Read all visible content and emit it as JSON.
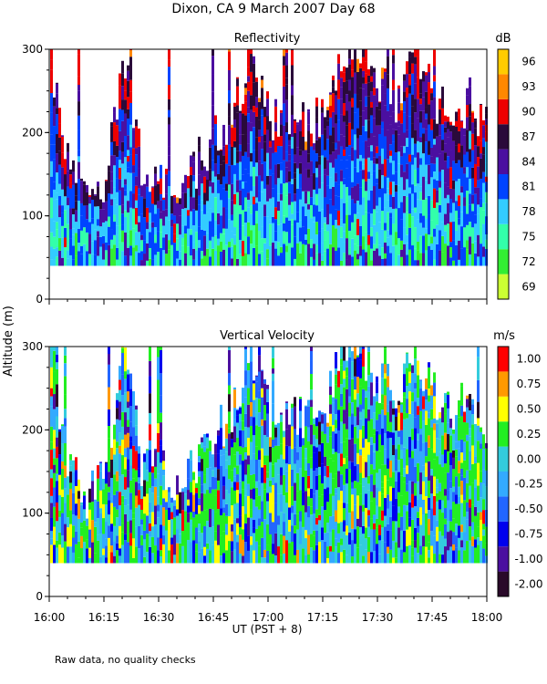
{
  "figure": {
    "title": "Dixon, CA  9 March 2007  Day  68",
    "footnote": "Raw data, no quality checks",
    "ylabel": "Altitude (m)",
    "xlabel": "UT  (PST + 8)"
  },
  "chart_data": [
    {
      "type": "heatmap",
      "title": "Reflectivity",
      "variable": "reflectivity",
      "xlabel": "UT  (PST + 8)",
      "ylabel": "Altitude (m)",
      "xlim": [
        "16:00",
        "18:00"
      ],
      "ylim": [
        0,
        300
      ],
      "x_ticks": [
        "16:00",
        "16:15",
        "16:30",
        "16:45",
        "17:00",
        "17:15",
        "17:30",
        "17:45",
        "18:00"
      ],
      "y_ticks": [
        0,
        100,
        200,
        300
      ],
      "colorbar": {
        "unit": "dB",
        "ticks": [
          "69",
          "72",
          "75",
          "78",
          "81",
          "84",
          "87",
          "90",
          "93",
          "96"
        ],
        "colors": [
          "#ccff33",
          "#33ee33",
          "#33ffaa",
          "#33ccff",
          "#0044ff",
          "#4b0fa0",
          "#2a0a3a",
          "#ee0000",
          "#ff8800",
          "#ffcc00"
        ]
      },
      "data_floor_m": 40,
      "echo_top_m": [
        {
          "time": "16:00",
          "top_m": 300
        },
        {
          "time": "16:05",
          "top_m": 150
        },
        {
          "time": "16:10",
          "top_m": 120
        },
        {
          "time": "16:15",
          "top_m": 140
        },
        {
          "time": "16:20",
          "top_m": 300
        },
        {
          "time": "16:25",
          "top_m": 160
        },
        {
          "time": "16:30",
          "top_m": 150
        },
        {
          "time": "16:35",
          "top_m": 140
        },
        {
          "time": "16:40",
          "top_m": 160
        },
        {
          "time": "16:45",
          "top_m": 200
        },
        {
          "time": "16:50",
          "top_m": 220
        },
        {
          "time": "16:55",
          "top_m": 300
        },
        {
          "time": "17:00",
          "top_m": 220
        },
        {
          "time": "17:05",
          "top_m": 220
        },
        {
          "time": "17:10",
          "top_m": 210
        },
        {
          "time": "17:15",
          "top_m": 220
        },
        {
          "time": "17:20",
          "top_m": 300
        },
        {
          "time": "17:25",
          "top_m": 300
        },
        {
          "time": "17:30",
          "top_m": 260
        },
        {
          "time": "17:35",
          "top_m": 240
        },
        {
          "time": "17:40",
          "top_m": 300
        },
        {
          "time": "17:45",
          "top_m": 240
        },
        {
          "time": "17:50",
          "top_m": 220
        },
        {
          "time": "17:55",
          "top_m": 240
        },
        {
          "time": "18:00",
          "top_m": 200
        }
      ]
    },
    {
      "type": "heatmap",
      "title": "Vertical Velocity",
      "variable": "vertical_velocity",
      "xlabel": "UT  (PST + 8)",
      "ylabel": "Altitude (m)",
      "xlim": [
        "16:00",
        "18:00"
      ],
      "ylim": [
        0,
        300
      ],
      "x_ticks": [
        "16:00",
        "16:15",
        "16:30",
        "16:45",
        "17:00",
        "17:15",
        "17:30",
        "17:45",
        "18:00"
      ],
      "y_ticks": [
        0,
        100,
        200,
        300
      ],
      "colorbar": {
        "unit": "m/s",
        "ticks": [
          "-2.00",
          "-1.00",
          "-0.75",
          "-0.50",
          "-0.25",
          "0.00",
          "0.25",
          "0.50",
          "0.75",
          "1.00"
        ],
        "colors": [
          "#2a0a2a",
          "#4b0fa0",
          "#0000ee",
          "#2266ff",
          "#33aaff",
          "#33ccdd",
          "#22ee22",
          "#ffff00",
          "#ff9900",
          "#ff0000"
        ]
      },
      "data_floor_m": 40,
      "echo_top_m": [
        {
          "time": "16:00",
          "top_m": 300
        },
        {
          "time": "16:05",
          "top_m": 150
        },
        {
          "time": "16:10",
          "top_m": 120
        },
        {
          "time": "16:15",
          "top_m": 140
        },
        {
          "time": "16:20",
          "top_m": 300
        },
        {
          "time": "16:25",
          "top_m": 160
        },
        {
          "time": "16:30",
          "top_m": 150
        },
        {
          "time": "16:35",
          "top_m": 140
        },
        {
          "time": "16:40",
          "top_m": 160
        },
        {
          "time": "16:45",
          "top_m": 200
        },
        {
          "time": "16:50",
          "top_m": 220
        },
        {
          "time": "16:55",
          "top_m": 300
        },
        {
          "time": "17:00",
          "top_m": 220
        },
        {
          "time": "17:05",
          "top_m": 220
        },
        {
          "time": "17:10",
          "top_m": 210
        },
        {
          "time": "17:15",
          "top_m": 220
        },
        {
          "time": "17:20",
          "top_m": 300
        },
        {
          "time": "17:25",
          "top_m": 300
        },
        {
          "time": "17:30",
          "top_m": 260
        },
        {
          "time": "17:35",
          "top_m": 240
        },
        {
          "time": "17:40",
          "top_m": 300
        },
        {
          "time": "17:45",
          "top_m": 240
        },
        {
          "time": "17:50",
          "top_m": 220
        },
        {
          "time": "17:55",
          "top_m": 240
        },
        {
          "time": "18:00",
          "top_m": 200
        }
      ]
    }
  ]
}
